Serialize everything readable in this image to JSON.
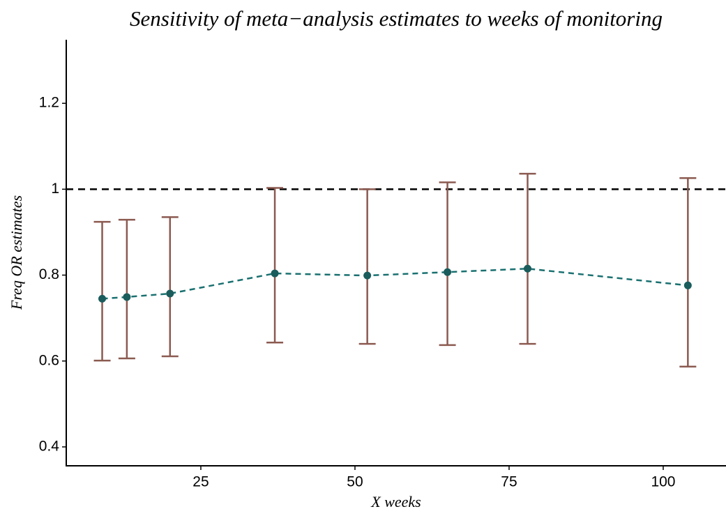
{
  "chart_data": {
    "type": "errorbar-line",
    "title": "Sensitivity of meta−analysis estimates to weeks of monitoring",
    "x_label": "X weeks",
    "y_label": "Freq OR estimates",
    "x": [
      9,
      13,
      20,
      37,
      52,
      65,
      78,
      104
    ],
    "values": [
      0.745,
      0.749,
      0.757,
      0.804,
      0.799,
      0.807,
      0.815,
      0.776
    ],
    "lower": [
      0.601,
      0.606,
      0.611,
      0.643,
      0.64,
      0.637,
      0.64,
      0.587
    ],
    "upper": [
      0.924,
      0.929,
      0.935,
      1.003,
      1.0,
      1.016,
      1.036,
      1.026
    ],
    "reference_line": 1.0,
    "point_color": "#1b5c5c",
    "line_color": "#1a7070",
    "errorbar_color": "#8b5a50",
    "reference_color": "#000000",
    "xlim": [
      3.17,
      110.07
    ],
    "ylim": [
      0.356,
      1.348
    ],
    "xticks": [
      25,
      50,
      75,
      100
    ],
    "yticks": [
      0.4,
      0.6,
      0.8,
      1.0,
      1.2
    ],
    "grid": false
  }
}
